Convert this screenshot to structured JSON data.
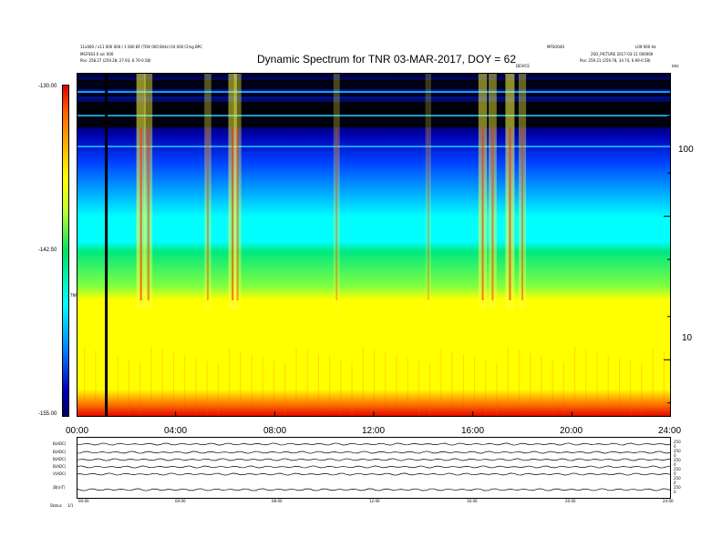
{
  "header": {
    "title": "Dynamic Spectrum for TNR 03-MAR-2017, DOY = 62",
    "left_line1": "11x000 / x11 000 000 / 1 000 BF (TOK 000 B/Hz) 04 000 Cl/ng BPC",
    "left_line2": "MGFS63.0 a/c 000",
    "left_line3": "Pos: 258.27 (259.28, 27.93, 6.70-0.58)",
    "right_tr1": "MFSO040",
    "right_tr2": "L09 000 Hz",
    "right_line2": "2SO_PICTURE 2017-03-11 000000",
    "right_line3": "Pos: 259.21 (259.78, 34.74, 6.69-0.58)",
    "mid_label": "DEVICE",
    "corner_label": "kHz"
  },
  "chart_data": {
    "type": "heatmap",
    "title": "Dynamic Spectrum for TNR 03-MAR-2017, DOY = 62",
    "x_tick_labels": [
      "00:00",
      "04:00",
      "08:00",
      "12:00",
      "16:00",
      "20:00",
      "24:00"
    ],
    "x_ticks_hours": [
      0,
      4,
      8,
      12,
      16,
      20,
      24
    ],
    "y_scale": "log",
    "y_tick_labels": [
      "100",
      "10"
    ],
    "y_tick_values": [
      100,
      10
    ],
    "y_range_khz": [
      4,
      1000
    ],
    "colorbar_labels": [
      "-130.00",
      "-142.50",
      "-155.00"
    ],
    "colorbar_values": [
      -130,
      -142.5,
      -155
    ],
    "colorbar_unit": "TNR",
    "colors": {
      "high": "#e00000",
      "mid_high": "#ffff00",
      "mid": "#00e060",
      "mid_low": "#00ffff",
      "low": "#0000c0",
      "floor": "#000000"
    },
    "marker_hour": 1.2,
    "bursts": [
      {
        "hour": 2.6,
        "strength": 1.0
      },
      {
        "hour": 2.9,
        "strength": 0.8
      },
      {
        "hour": 5.3,
        "strength": 0.6
      },
      {
        "hour": 6.3,
        "strength": 0.9
      },
      {
        "hour": 6.5,
        "strength": 0.7
      },
      {
        "hour": 10.5,
        "strength": 0.5
      },
      {
        "hour": 14.2,
        "strength": 0.4
      },
      {
        "hour": 16.4,
        "strength": 0.9
      },
      {
        "hour": 16.8,
        "strength": 0.8
      },
      {
        "hour": 17.5,
        "strength": 1.0
      },
      {
        "hour": 18.0,
        "strength": 0.7
      }
    ]
  },
  "lower_panel": {
    "left_labels": [
      "B(ADC)",
      "B(ADC)",
      "B(ADC)",
      "B(ADC)",
      "V(ADC)",
      "|B|(nT)"
    ],
    "right_labels": [
      "250",
      "0",
      "250",
      "0",
      "250",
      "0",
      "250",
      "0",
      "250",
      "0",
      "250",
      "0"
    ],
    "time_labels": [
      "00:00",
      "04:00",
      "08:00",
      "12:00",
      "16:00",
      "20:00",
      "24:00"
    ],
    "footer_left": "Status",
    "footer_val": "1/1"
  }
}
